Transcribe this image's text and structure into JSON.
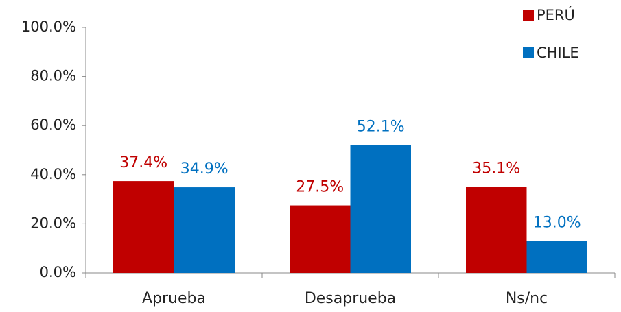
{
  "chart_data": {
    "type": "bar",
    "categories": [
      "Aprueba",
      "Desaprueba",
      "Ns/nc"
    ],
    "series": [
      {
        "name": "PERÚ",
        "color": "#c00000",
        "values": [
          37.4,
          27.5,
          35.1
        ],
        "value_labels": [
          "37.4%",
          "27.5%",
          "35.1%"
        ]
      },
      {
        "name": "CHILE",
        "color": "#0070c0",
        "values": [
          34.9,
          52.1,
          13.0
        ],
        "value_labels": [
          "34.9%",
          "52.1%",
          "13.0%"
        ]
      }
    ],
    "ylim": [
      0,
      100
    ],
    "yticks": [
      {
        "value": 0,
        "label": "0.0%"
      },
      {
        "value": 20,
        "label": "20.0%"
      },
      {
        "value": 40,
        "label": "40.0%"
      },
      {
        "value": 60,
        "label": "60.0%"
      },
      {
        "value": 80,
        "label": "80.0%"
      },
      {
        "value": 100,
        "label": "100.0%"
      }
    ],
    "grid": false,
    "legend": "top-right"
  }
}
